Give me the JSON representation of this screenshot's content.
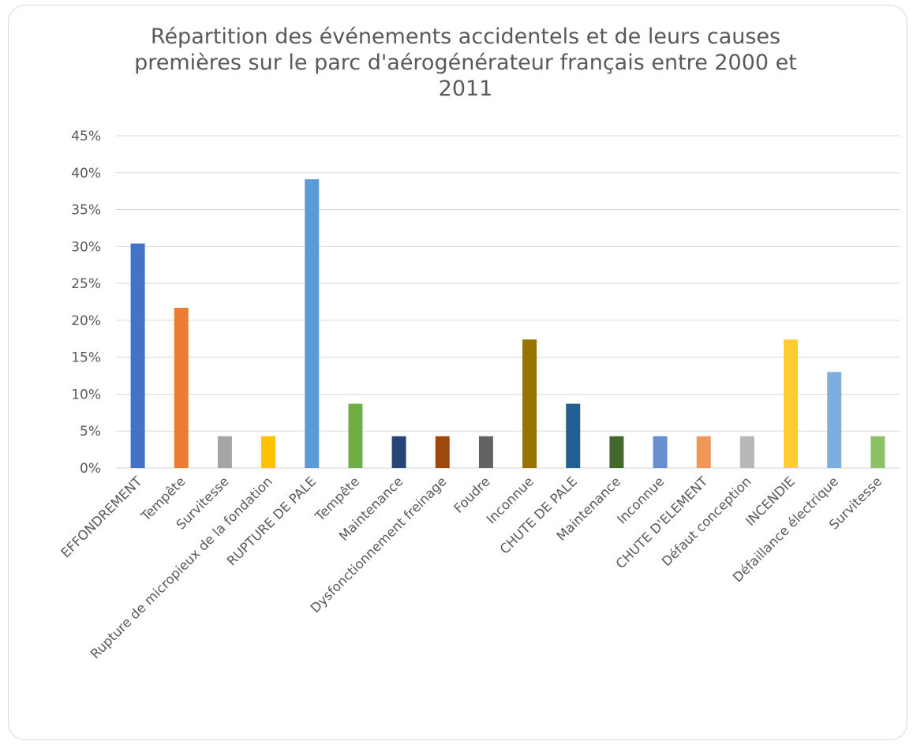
{
  "chart_data": {
    "type": "bar",
    "title": "Répartition des événements accidentels et de leurs causes premières sur le parc d'aérogénérateur français entre 2000 et 2011",
    "xlabel": "",
    "ylabel": "",
    "ylim": [
      0,
      0.45
    ],
    "yticks": [
      "0%",
      "5%",
      "10%",
      "15%",
      "20%",
      "25%",
      "30%",
      "35%",
      "40%",
      "45%"
    ],
    "grid": true,
    "legend": "none",
    "categories": [
      "EFFONDREMENT",
      "Tempête",
      "Survitesse",
      "Rupture de micropieux de la fondation",
      "RUPTURE DE PALE",
      "Tempête",
      "Maintenance",
      "Dysfonctionnement freinage",
      "Foudre",
      "Inconnue",
      "CHUTE DE PALE",
      "Maintenance",
      "Inconnue",
      "CHUTE D'ELEMENT",
      "Défaut conception",
      "INCENDIE",
      "Défaillance électrique",
      "Survitesse"
    ],
    "values": [
      0.304,
      0.217,
      0.043,
      0.043,
      0.391,
      0.087,
      0.043,
      0.043,
      0.043,
      0.174,
      0.087,
      0.043,
      0.043,
      0.043,
      0.043,
      0.174,
      0.13,
      0.043
    ],
    "colors": [
      "#4472C4",
      "#ED7D31",
      "#A5A5A5",
      "#FFC000",
      "#5B9BD5",
      "#70AD47",
      "#264478",
      "#9E480E",
      "#636363",
      "#997300",
      "#255E91",
      "#43682B",
      "#698ED0",
      "#F1975A",
      "#B7B7B7",
      "#FFCD33",
      "#7CAFDD",
      "#8CC168"
    ]
  }
}
